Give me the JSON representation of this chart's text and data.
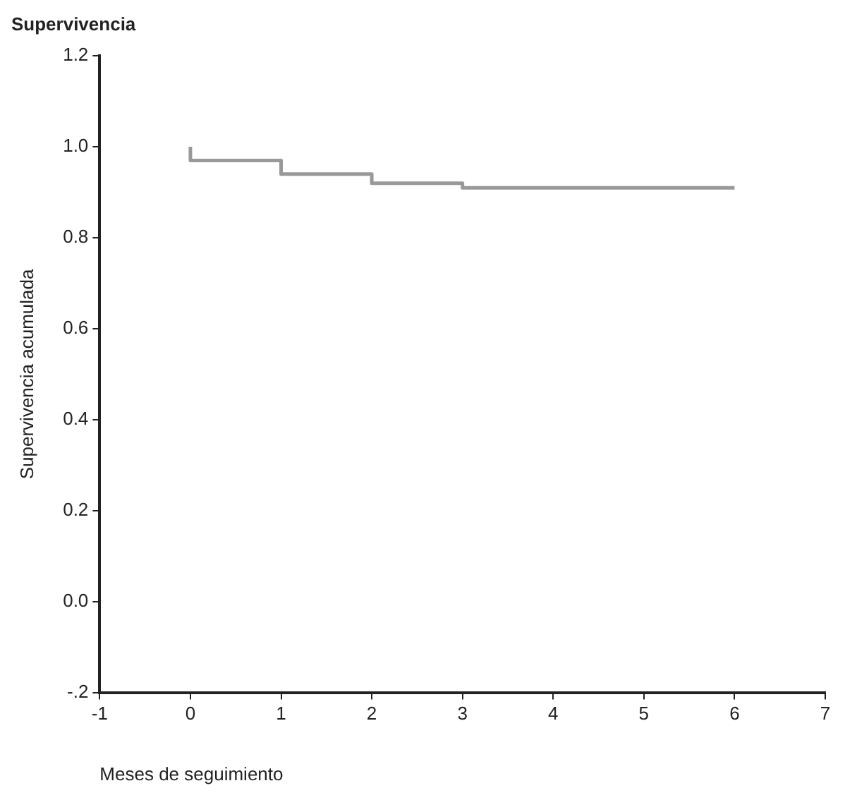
{
  "chart_data": {
    "type": "step",
    "title": "Supervivencia",
    "xlabel": "Meses de seguimiento",
    "ylabel": "Supervivencia acumulada",
    "x": [
      0,
      0,
      1,
      2,
      3,
      4,
      6
    ],
    "series": [
      {
        "color": "#999999",
        "values": [
          1.0,
          0.98,
          0.97,
          0.94,
          0.92,
          0.91,
          0.91
        ]
      }
    ],
    "xlim": [
      -1,
      7
    ],
    "xticks": [
      -1,
      0,
      1,
      2,
      3,
      4,
      5,
      6,
      7
    ],
    "ylim": [
      -0.2,
      1.2
    ],
    "yticks": [
      {
        "value": -0.2,
        "label": "-.2"
      },
      {
        "value": 0,
        "label": "0.0"
      },
      {
        "value": 0.2,
        "label": "0.2"
      },
      {
        "value": 0.4,
        "label": "0.4"
      },
      {
        "value": 0.6,
        "label": "0.6"
      },
      {
        "value": 0.8,
        "label": "0.8"
      },
      {
        "value": 1.0,
        "label": "1.0"
      },
      {
        "value": 1.2,
        "label": "1.2"
      }
    ],
    "grid": false,
    "legend": false,
    "marker": "none",
    "line_style": "solid"
  }
}
